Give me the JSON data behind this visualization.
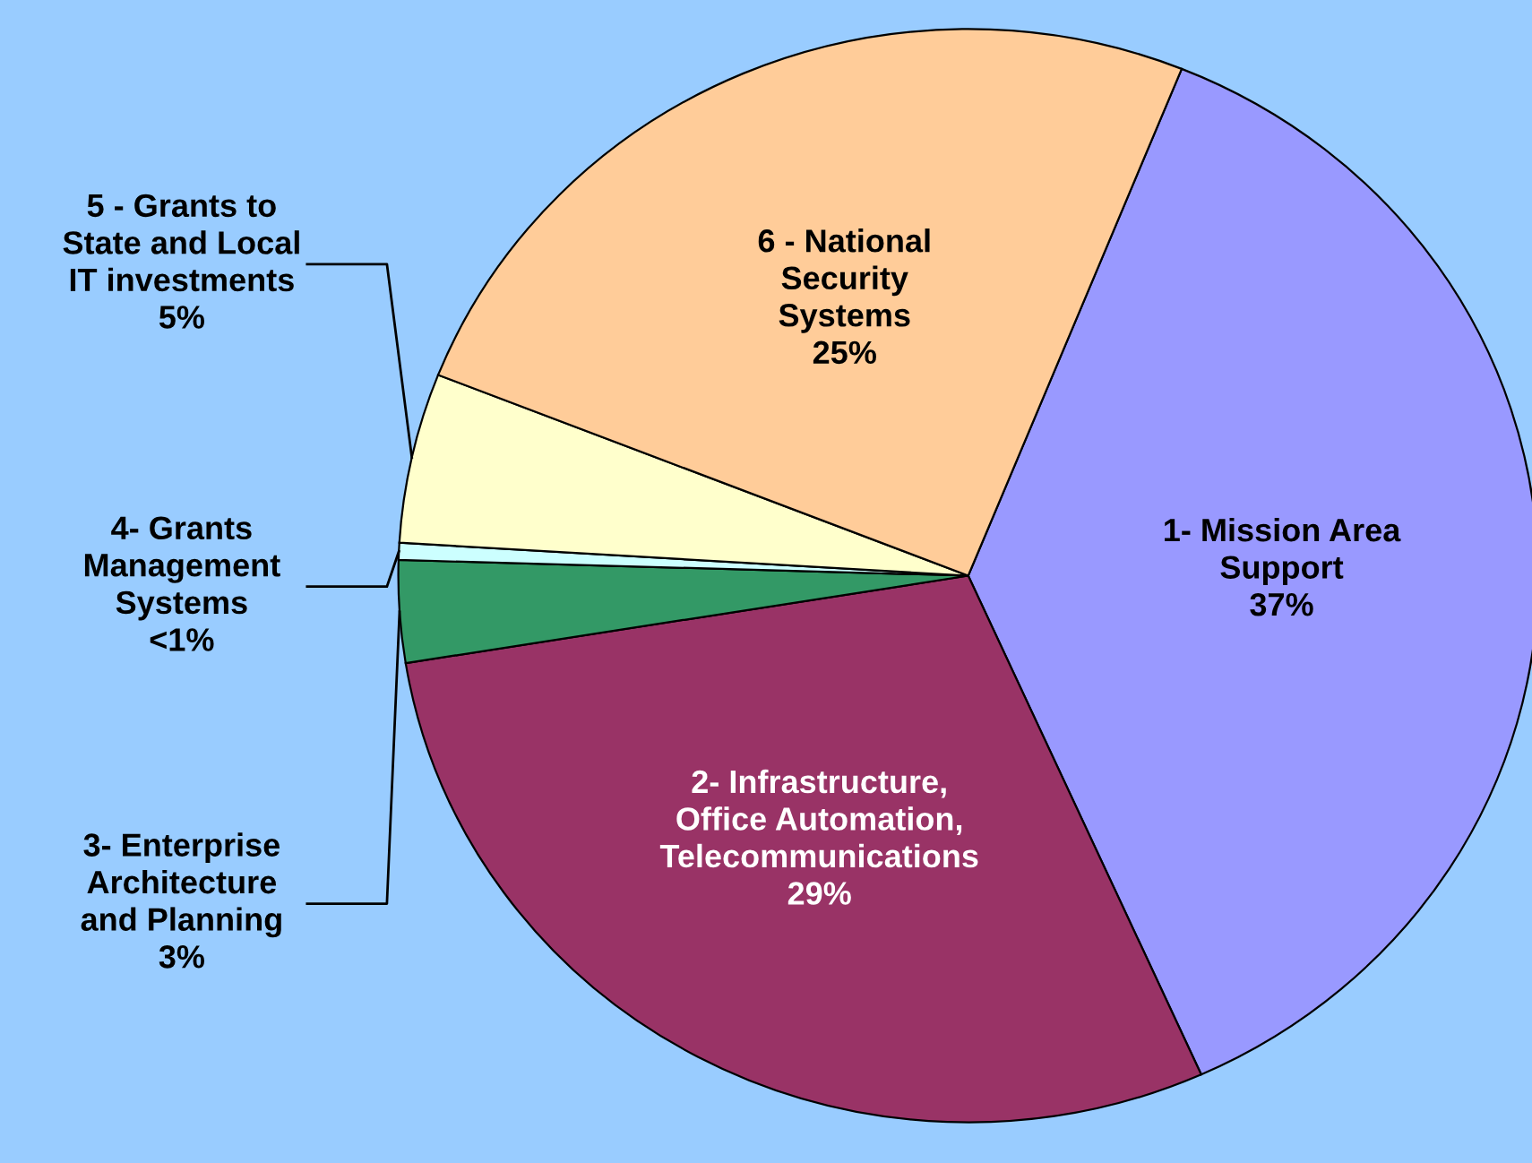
{
  "chart_data": {
    "type": "pie",
    "categories": [
      "1- Mission Area\nSupport",
      "2- Infrastructure,\nOffice Automation,\nTelecommunications",
      "3- Enterprise\nArchitecture\nand Planning",
      "4- Grants\nManagement\nSystems",
      "5 - Grants to\nState and Local\nIT investments",
      "6 - National\nSecurity\nSystems"
    ],
    "values": [
      37,
      29,
      3,
      0.5,
      5,
      25
    ],
    "value_labels": [
      "37%",
      "29%",
      "3%",
      "<1%",
      "5%",
      "25%"
    ],
    "colors": [
      "#9999ff",
      "#993366",
      "#339966",
      "#ccffff",
      "#ffffcc",
      "#ffcc99"
    ],
    "legend": false
  }
}
